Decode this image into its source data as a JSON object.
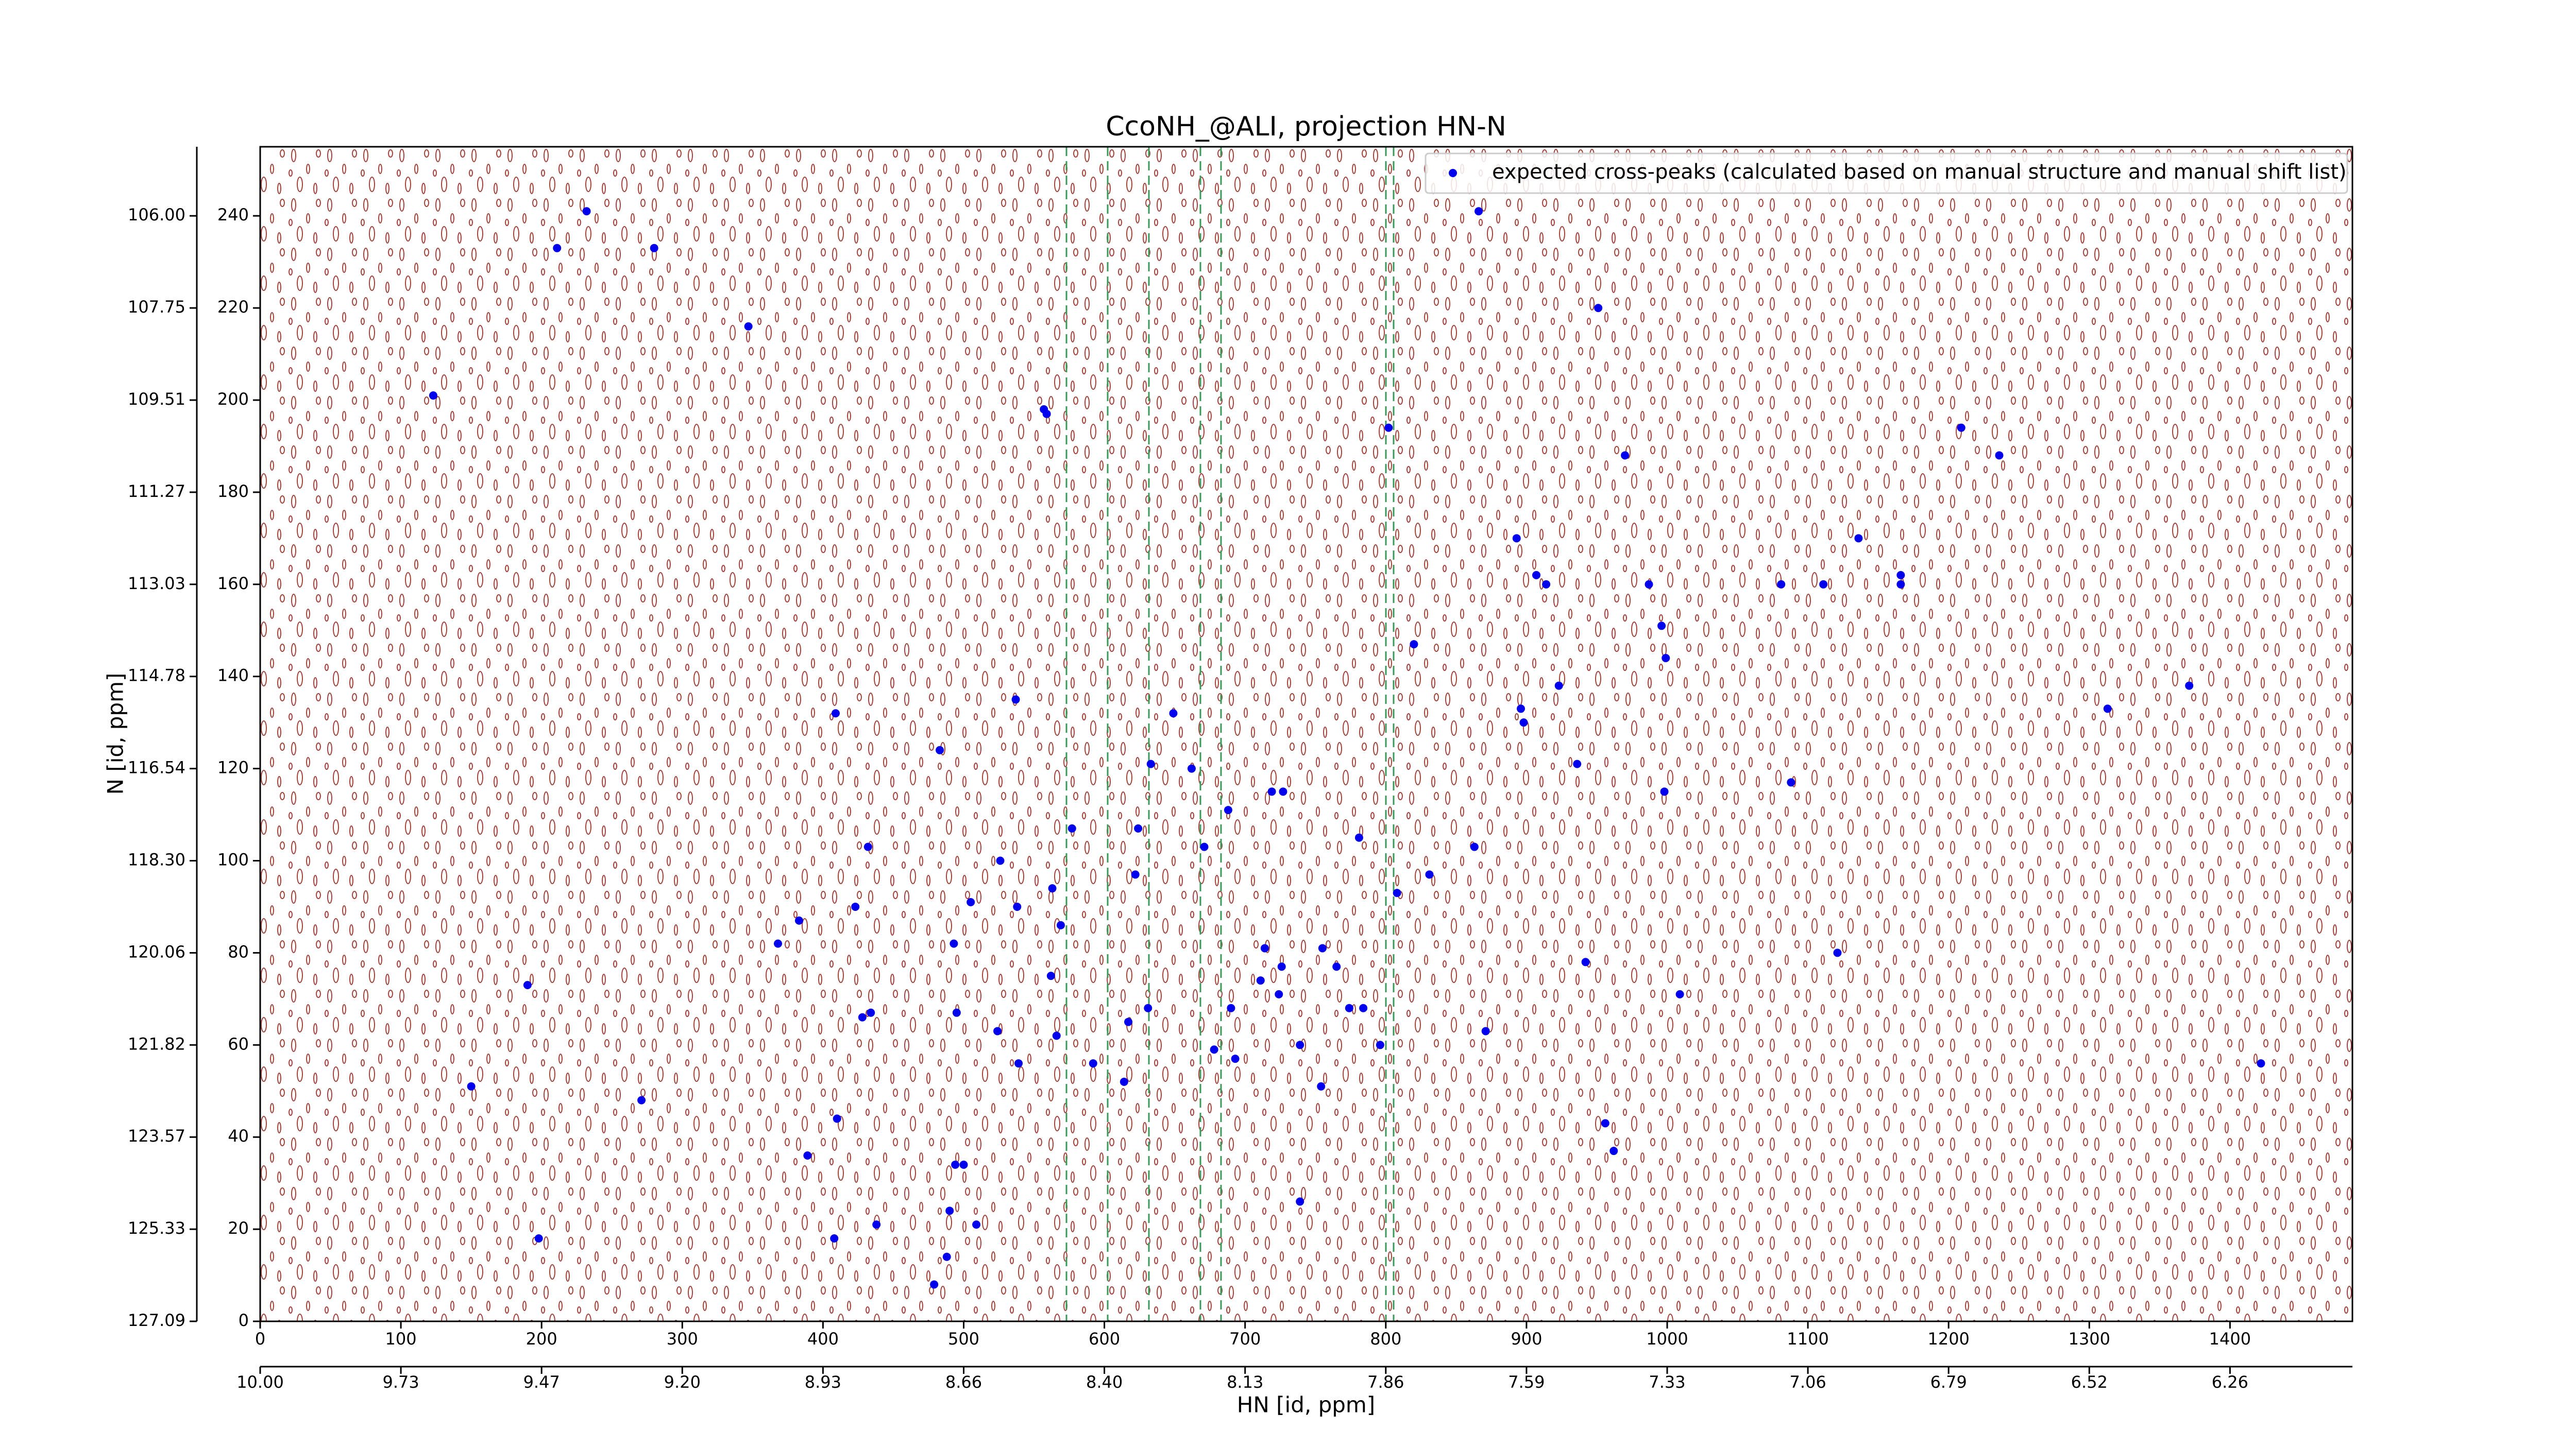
{
  "chart_data": {
    "type": "scatter",
    "title": "CcoNH_@ALI, projection HN-N",
    "xlabel": "HN [id, ppm]",
    "ylabel": "N [id, ppm]",
    "xlim": [
      0,
      1487
    ],
    "ylim": [
      0,
      255
    ],
    "xticks": [
      0,
      100,
      200,
      300,
      400,
      500,
      600,
      700,
      800,
      900,
      1000,
      1100,
      1200,
      1300,
      1400
    ],
    "yticks": [
      0,
      20,
      40,
      60,
      80,
      100,
      120,
      140,
      160,
      180,
      200,
      220,
      240
    ],
    "x2ticks": [
      {
        "value": 0,
        "label": "10.00"
      },
      {
        "value": 100,
        "label": "9.73"
      },
      {
        "value": 200,
        "label": "9.47"
      },
      {
        "value": 300,
        "label": "9.20"
      },
      {
        "value": 400,
        "label": "8.93"
      },
      {
        "value": 500,
        "label": "8.66"
      },
      {
        "value": 600,
        "label": "8.40"
      },
      {
        "value": 700,
        "label": "8.13"
      },
      {
        "value": 800,
        "label": "7.86"
      },
      {
        "value": 900,
        "label": "7.59"
      },
      {
        "value": 1000,
        "label": "7.33"
      },
      {
        "value": 1100,
        "label": "7.06"
      },
      {
        "value": 1200,
        "label": "6.79"
      },
      {
        "value": 1300,
        "label": "6.52"
      },
      {
        "value": 1400,
        "label": "6.26"
      }
    ],
    "y2ticks": [
      {
        "value": 0,
        "label": "127.09"
      },
      {
        "value": 20,
        "label": "125.33"
      },
      {
        "value": 40,
        "label": "123.57"
      },
      {
        "value": 60,
        "label": "121.82"
      },
      {
        "value": 80,
        "label": "120.06"
      },
      {
        "value": 100,
        "label": "118.30"
      },
      {
        "value": 120,
        "label": "116.54"
      },
      {
        "value": 140,
        "label": "114.78"
      },
      {
        "value": 160,
        "label": "113.03"
      },
      {
        "value": 180,
        "label": "111.27"
      },
      {
        "value": 200,
        "label": "109.51"
      },
      {
        "value": 220,
        "label": "107.75"
      },
      {
        "value": 240,
        "label": "106.00"
      }
    ],
    "legend": "upper right",
    "series": [
      {
        "name": "expected cross-peaks (calculated based on manual structure and manual shift list)",
        "color": "#0000ee",
        "x": [
          232,
          211,
          280,
          347,
          123,
          557,
          559,
          802,
          866,
          951,
          970,
          1209,
          1236,
          893,
          1136,
          907,
          914,
          987,
          1081,
          1111,
          1166,
          1166,
          996,
          999,
          820,
          923,
          896,
          898,
          936,
          998,
          1088,
          1313,
          1371,
          537,
          649,
          409,
          483,
          633,
          662,
          719,
          727,
          688,
          577,
          624,
          781,
          863,
          432,
          671,
          526,
          622,
          831,
          563,
          808,
          505,
          423,
          538,
          569,
          383,
          368,
          493,
          714,
          755,
          1121,
          942,
          562,
          726,
          765,
          190,
          711,
          724,
          1009,
          631,
          690,
          784,
          428,
          434,
          495,
          774,
          617,
          524,
          871,
          566,
          739,
          796,
          678,
          693,
          592,
          539,
          614,
          754,
          150,
          271,
          1422,
          410,
          956,
          389,
          962,
          500,
          494,
          739,
          490,
          509,
          438,
          408,
          198,
          488,
          479
        ],
        "y": [
          241,
          233,
          233,
          216,
          201,
          198,
          197,
          194,
          241,
          220,
          188,
          194,
          188,
          170,
          170,
          162,
          160,
          160,
          160,
          160,
          162,
          160,
          151,
          144,
          147,
          138,
          133,
          130,
          121,
          115,
          117,
          133,
          138,
          135,
          132,
          132,
          124,
          121,
          120,
          115,
          115,
          111,
          107,
          107,
          105,
          103,
          103,
          103,
          100,
          97,
          97,
          94,
          93,
          91,
          90,
          90,
          86,
          87,
          82,
          82,
          81,
          81,
          80,
          78,
          75,
          77,
          77,
          73,
          74,
          71,
          71,
          68,
          68,
          68,
          66,
          67,
          67,
          68,
          65,
          63,
          63,
          62,
          60,
          60,
          59,
          57,
          56,
          56,
          52,
          51,
          51,
          48,
          56,
          44,
          43,
          36,
          37,
          34,
          34,
          26,
          24,
          21,
          21,
          18,
          18,
          14,
          8
        ]
      }
    ]
  }
}
